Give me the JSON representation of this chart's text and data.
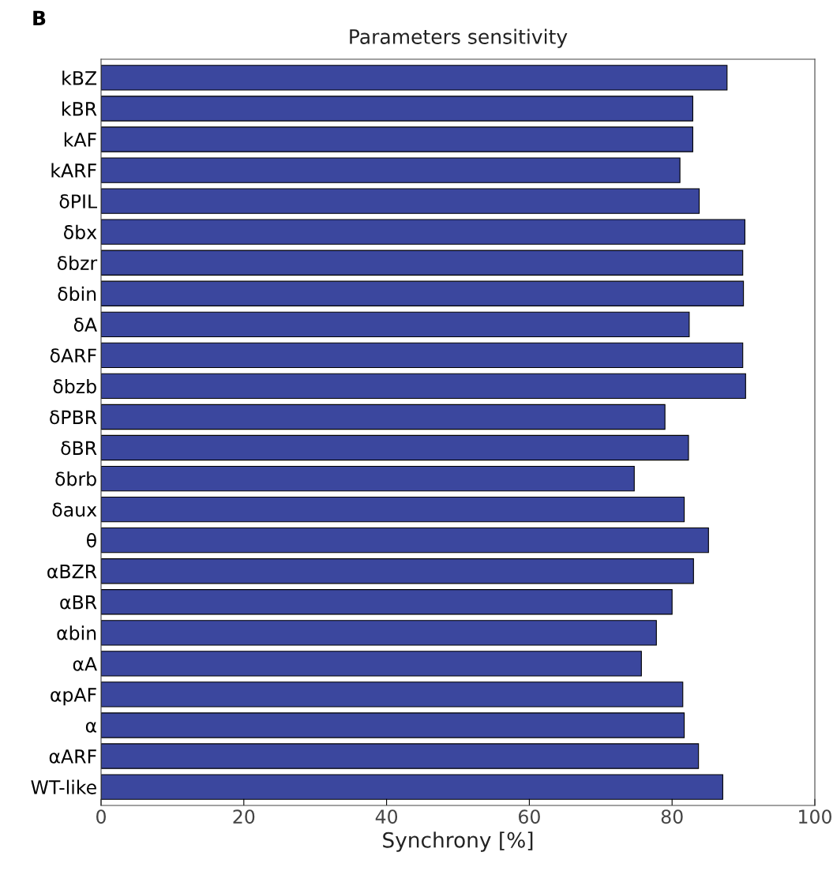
{
  "chart_data": {
    "type": "bar",
    "orientation": "horizontal",
    "title": "Parameters sensitivity",
    "xlabel": "Synchrony [%]",
    "annotations": [
      "B"
    ],
    "categories": [
      "kBZ",
      "kBR",
      "kAF",
      "kARF",
      "δPIL",
      "δbx",
      "δbzr",
      "δbin",
      "δA",
      "δARF",
      "δbzb",
      "δPBR",
      "δBR",
      "δbrb",
      "δaux",
      "θ",
      "αBZR",
      "αBR",
      "αbin",
      "αA",
      "αpAF",
      "α",
      "αARF",
      "WT-like"
    ],
    "values": [
      87.7,
      82.9,
      82.9,
      81.1,
      83.8,
      90.2,
      89.9,
      90.0,
      82.4,
      89.9,
      90.3,
      79.0,
      82.3,
      74.7,
      81.7,
      85.1,
      83.0,
      80.0,
      77.8,
      75.7,
      81.5,
      81.7,
      83.7,
      87.1
    ],
    "color": "#3b479e",
    "xlim": [
      0,
      100
    ],
    "xticks": [
      0,
      20,
      40,
      60,
      80,
      100
    ],
    "grid": false,
    "legend": false
  }
}
